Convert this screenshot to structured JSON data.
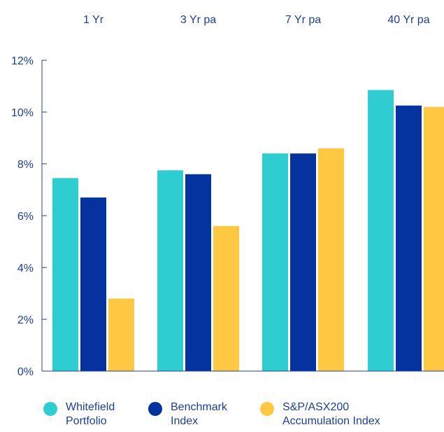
{
  "chart_data": {
    "type": "bar",
    "categories": [
      "1 Yr",
      "3 Yr pa",
      "7 Yr pa",
      "40 Yr pa"
    ],
    "series": [
      {
        "name": "Whitefield\nPortfolio",
        "color": "#2ecdd2",
        "values": [
          7.45,
          7.75,
          8.4,
          10.85
        ]
      },
      {
        "name": "Benchmark\nIndex",
        "color": "#0433a0",
        "values": [
          6.7,
          7.6,
          8.4,
          10.25
        ]
      },
      {
        "name": "S&P/ASX200\nAccumulation Index",
        "color": "#ffc843",
        "values": [
          2.8,
          5.6,
          8.6,
          10.2
        ]
      }
    ],
    "y_ticks": [
      "0%",
      "2%",
      "4%",
      "6%",
      "8%",
      "10%",
      "12%"
    ],
    "ylim": [
      0,
      12
    ],
    "title": "",
    "xlabel": "",
    "ylabel": "",
    "grid": false,
    "legend": "bottom"
  }
}
